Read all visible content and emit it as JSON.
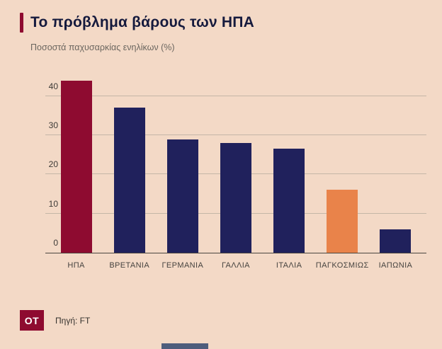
{
  "header": {
    "title": "Το πρόβλημα βάρους των ΗΠΑ",
    "subtitle": "Ποσοστά παχυσαρκίας ενηλίκων (%)"
  },
  "footer": {
    "logo": "OT",
    "source": "Πηγή: FT"
  },
  "colors": {
    "background": "#f3d9c6",
    "accent_maroon": "#8e0b30",
    "bar_navy": "#20215c",
    "bar_orange": "#e9834a",
    "title_navy": "#151a3d"
  },
  "chart_data": {
    "type": "bar",
    "title": "Το πρόβλημα βάρους των ΗΠΑ",
    "subtitle": "Ποσοστά παχυσαρκίας ενηλίκων (%)",
    "categories": [
      "ΗΠΑ",
      "ΒΡΕΤΑΝΙΑ",
      "ΓΕΡΜΑΝΙΑ",
      "ΓΑΛΛΙΑ",
      "ΙΤΑΛΙΑ",
      "ΠΑΓΚΟΣΜΙΩΣ",
      "ΙΑΠΩΝΙΑ"
    ],
    "values": [
      44,
      37,
      29,
      28,
      26.5,
      16,
      6
    ],
    "bar_colors": [
      "#8e0b30",
      "#20215c",
      "#20215c",
      "#20215c",
      "#20215c",
      "#e9834a",
      "#20215c"
    ],
    "xlabel": "",
    "ylabel": "Ποσοστά παχυσαρκίας ενηλίκων (%)",
    "ylim": [
      0,
      45
    ],
    "yticks": [
      0,
      10,
      20,
      30,
      40
    ],
    "grid": true,
    "legend": false,
    "source": "FT"
  }
}
